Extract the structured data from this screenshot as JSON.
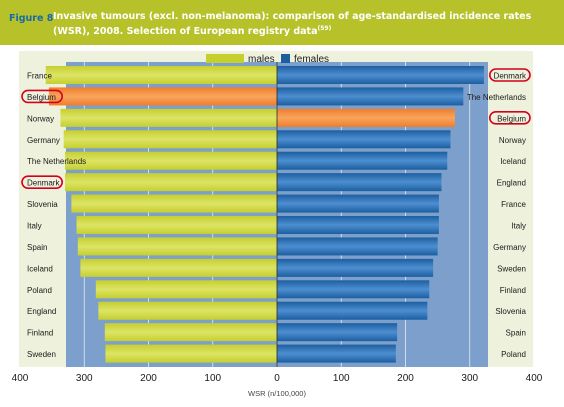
{
  "figure_label": "Figure 8",
  "title": "Invasive tumours (excl. non-melanoma): comparison of age-standardised incidence rates (WSR), 2008. Selection of European registry data",
  "title_ref": "(59)",
  "colors": {
    "header_bg": "#b7c22b",
    "figure_label": "#176aa6",
    "males": "#c5cf2e",
    "males_light": "#dde466",
    "females": "#1c5fa0",
    "females_light": "#4d8ed0",
    "highlight": "#f07d2a",
    "highlight_light": "#f8a55e",
    "plot_bg": "#7d9fcb",
    "annotation_circle": "#d4001f"
  },
  "chart_data": {
    "type": "bar",
    "orientation": "horizontal-back-to-back",
    "xlabel": "WSR (n/100,000)",
    "xlim": [
      -400,
      400
    ],
    "xticks": [
      400,
      300,
      200,
      100,
      0,
      100,
      200,
      300,
      400
    ],
    "grid": true,
    "legend": {
      "placement": "top-center",
      "entries": [
        "males",
        "females"
      ]
    },
    "series": [
      {
        "name": "males",
        "categories": [
          "France",
          "Belgium",
          "Norway",
          "Germany",
          "The Netherlands",
          "Denmark",
          "Slovenia",
          "Italy",
          "Spain",
          "Iceland",
          "Poland",
          "England",
          "Finland",
          "Sweden"
        ],
        "values": [
          360,
          355,
          337,
          332,
          330,
          330,
          320,
          312,
          310,
          306,
          282,
          278,
          268,
          267
        ],
        "highlighted": [
          "Belgium"
        ]
      },
      {
        "name": "females",
        "categories": [
          "Denmark",
          "The Netherlands",
          "Belgium",
          "Norway",
          "Iceland",
          "England",
          "France",
          "Italy",
          "Germany",
          "Sweden",
          "Finland",
          "Slovenia",
          "Spain",
          "Poland"
        ],
        "values": [
          322,
          290,
          277,
          270,
          265,
          256,
          252,
          252,
          250,
          243,
          237,
          234,
          187,
          185
        ],
        "highlighted": [
          "Belgium"
        ]
      }
    ],
    "annotated_categories": [
      "Belgium",
      "Denmark"
    ]
  }
}
